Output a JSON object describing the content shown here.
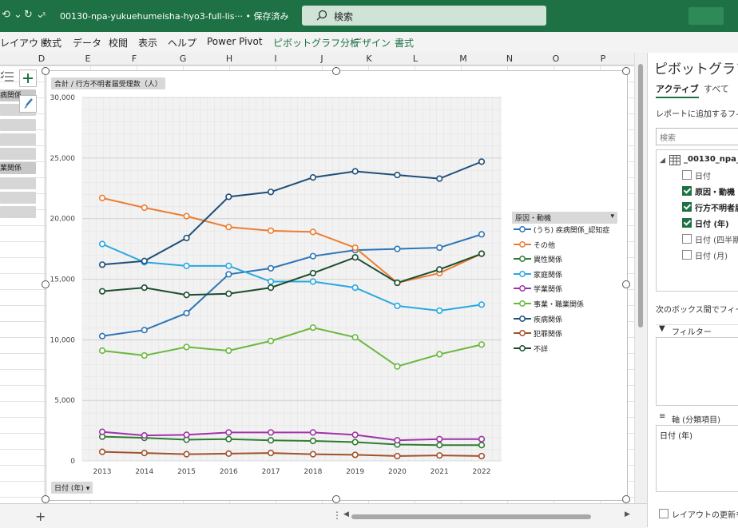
{
  "titlebar": {
    "file_name": "00130-npa-yukuehumeisha-hyo3-full-lis···  • 保存済み",
    "save_state": "",
    "search_placeholder": "検索"
  },
  "ribbon": {
    "tabs": [
      "レイアウト",
      "数式",
      "データ",
      "校閲",
      "表示",
      "ヘルプ",
      "Power Pivot",
      "ピボットグラフ分析",
      "デザイン",
      "書式"
    ]
  },
  "columns": [
    "D",
    "E",
    "F",
    "G",
    "H",
    "I",
    "J",
    "K",
    "L",
    "M",
    "N",
    "O",
    "P"
  ],
  "slicer_items": [
    "病関係",
    "",
    "",
    "",
    "",
    "業関係",
    "",
    "",
    ""
  ],
  "chart": {
    "value_field_button": "合計 / 行方不明者届受理数（人）",
    "axis_field_button": "日付 (年)",
    "legend_field_button": "原因・動機"
  },
  "chart_data": {
    "type": "line",
    "x": [
      "2013",
      "2014",
      "2015",
      "2016",
      "2017",
      "2018",
      "2019",
      "2020",
      "2021",
      "2022"
    ],
    "ylim": [
      0,
      30000
    ],
    "yticks": [
      "0",
      "5,000",
      "10,000",
      "15,000",
      "20,000",
      "25,000",
      "30,000"
    ],
    "grid": true,
    "legend_position": "right",
    "series": [
      {
        "name": "(うち) 疾病関係_認知症",
        "color": "#2e75b6",
        "values": [
          10300,
          10800,
          12200,
          15400,
          15900,
          16900,
          17400,
          17500,
          17600,
          18700
        ]
      },
      {
        "name": "その他",
        "color": "#ed7d31",
        "values": [
          21700,
          20900,
          20200,
          19300,
          19000,
          18900,
          17600,
          14700,
          15500,
          17100
        ]
      },
      {
        "name": "異性関係",
        "color": "#2e7d32",
        "values": [
          2000,
          1900,
          1750,
          1800,
          1700,
          1650,
          1550,
          1350,
          1300,
          1300
        ]
      },
      {
        "name": "家庭関係",
        "color": "#29a8e0",
        "values": [
          17900,
          16400,
          16100,
          16100,
          14800,
          14800,
          14300,
          12800,
          12400,
          12900
        ]
      },
      {
        "name": "学業関係",
        "color": "#a033a8",
        "values": [
          2400,
          2100,
          2150,
          2350,
          2350,
          2350,
          2150,
          1700,
          1800,
          1800
        ]
      },
      {
        "name": "事業・職業関係",
        "color": "#6ab83e",
        "values": [
          9100,
          8700,
          9400,
          9100,
          9900,
          11000,
          10200,
          7800,
          8800,
          9600
        ]
      },
      {
        "name": "疾病関係",
        "color": "#1f4e79",
        "values": [
          16200,
          16500,
          18400,
          21800,
          22200,
          23400,
          23900,
          23600,
          23300,
          24700
        ]
      },
      {
        "name": "犯罪関係",
        "color": "#a0522d",
        "values": [
          750,
          650,
          550,
          600,
          650,
          550,
          500,
          400,
          450,
          400
        ]
      },
      {
        "name": "不詳",
        "color": "#1b4d2e",
        "values": [
          14000,
          14300,
          13700,
          13800,
          14300,
          15500,
          16800,
          14700,
          15800,
          17100
        ]
      }
    ]
  },
  "pane": {
    "title": "ピボットグラフの",
    "tabs": [
      "アクティブ",
      "すべて"
    ],
    "instruction": "レポートに追加するフィール",
    "search_placeholder": "検索",
    "table_name": "_00130_npa_",
    "fields": [
      {
        "label": "日付",
        "checked": false,
        "bold": false
      },
      {
        "label": "原因・動機",
        "checked": true,
        "bold": true
      },
      {
        "label": "行方不明者届",
        "checked": true,
        "bold": true
      },
      {
        "label": "日付 (年)",
        "checked": true,
        "bold": true
      },
      {
        "label": "日付 (四半期",
        "checked": false,
        "bold": false
      },
      {
        "label": "日付 (月)",
        "checked": false,
        "bold": false
      }
    ],
    "areas_label": "次のボックス間でフィールド",
    "filter_label": "フィルター",
    "axis_label": "軸 (分類項目)",
    "axis_item": "日付 (年)",
    "defer_label": "レイアウトの更新を保"
  }
}
